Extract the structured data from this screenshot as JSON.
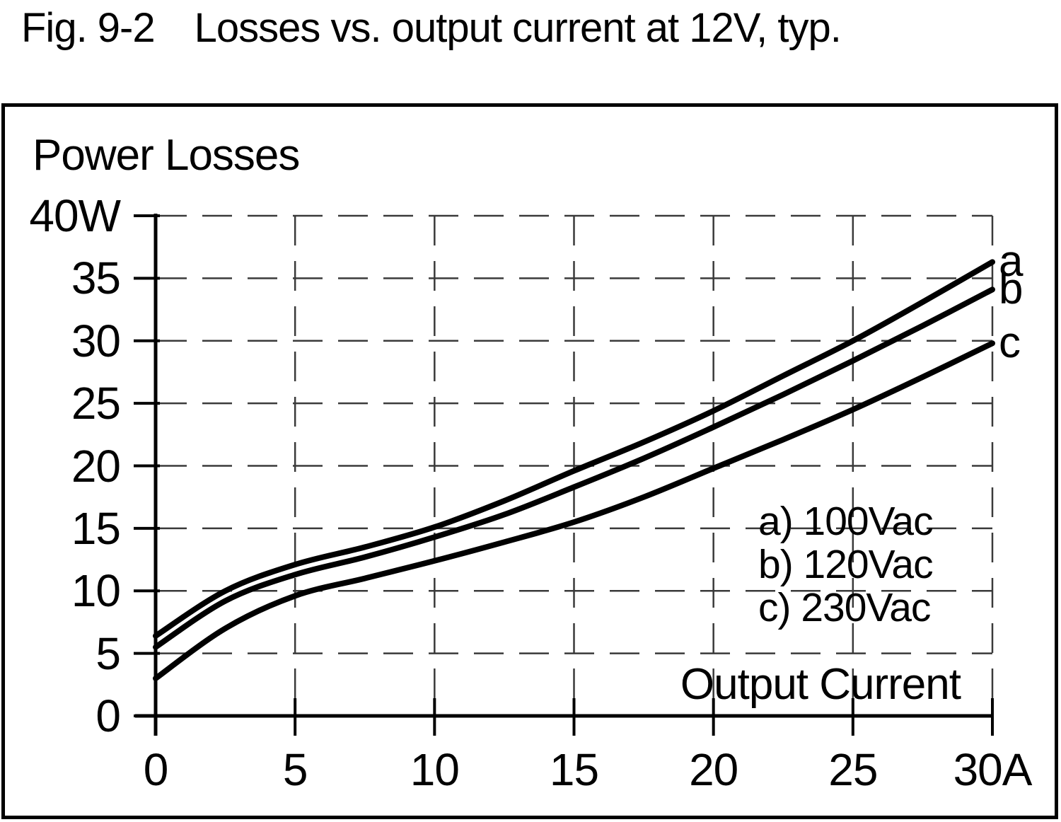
{
  "figure": {
    "number": "Fig. 9-2",
    "caption": "Losses vs. output current at 12V, typ."
  },
  "chart_data": {
    "type": "line",
    "title": "Losses vs. output current at 12V, typ.",
    "ylabel": "Power Losses",
    "xlabel": "Output Current",
    "y_unit": "W",
    "x_unit": "A",
    "xlim": [
      0,
      30
    ],
    "ylim": [
      0,
      40
    ],
    "x_ticks": [
      0,
      5,
      10,
      15,
      20,
      25,
      30
    ],
    "x_tick_labels": [
      "0",
      "5",
      "10",
      "15",
      "20",
      "25",
      "30A"
    ],
    "y_ticks": [
      0,
      5,
      10,
      15,
      20,
      25,
      30,
      35,
      40
    ],
    "y_tick_labels": [
      "0",
      "5",
      "10",
      "15",
      "20",
      "25",
      "30",
      "35",
      "40W"
    ],
    "grid": "dashed",
    "legend_position": "inside-right",
    "colors": {
      "line": "#000000",
      "grid": "#3a3a3a",
      "text": "#000000",
      "background": "#ffffff"
    },
    "x": [
      0,
      2.5,
      5,
      7.5,
      10,
      12.5,
      15,
      17.5,
      20,
      22.5,
      25,
      27.5,
      30
    ],
    "series": [
      {
        "tag": "a",
        "label": "a) 100Vac",
        "voltage": "100Vac",
        "values": [
          6.4,
          10.0,
          12.1,
          13.5,
          15.1,
          17.2,
          19.6,
          21.9,
          24.4,
          27.2,
          30.0,
          33.1,
          36.3
        ]
      },
      {
        "tag": "b",
        "label": "b) 120Vac",
        "voltage": "120Vac",
        "values": [
          5.5,
          9.2,
          11.3,
          12.7,
          14.3,
          16.1,
          18.3,
          20.6,
          23.1,
          25.7,
          28.4,
          31.2,
          34.1
        ]
      },
      {
        "tag": "c",
        "label": "c) 230Vac",
        "voltage": "230Vac",
        "values": [
          3.0,
          7.0,
          9.6,
          11.0,
          12.4,
          13.9,
          15.5,
          17.5,
          19.8,
          22.1,
          24.5,
          27.1,
          29.8
        ]
      }
    ]
  }
}
